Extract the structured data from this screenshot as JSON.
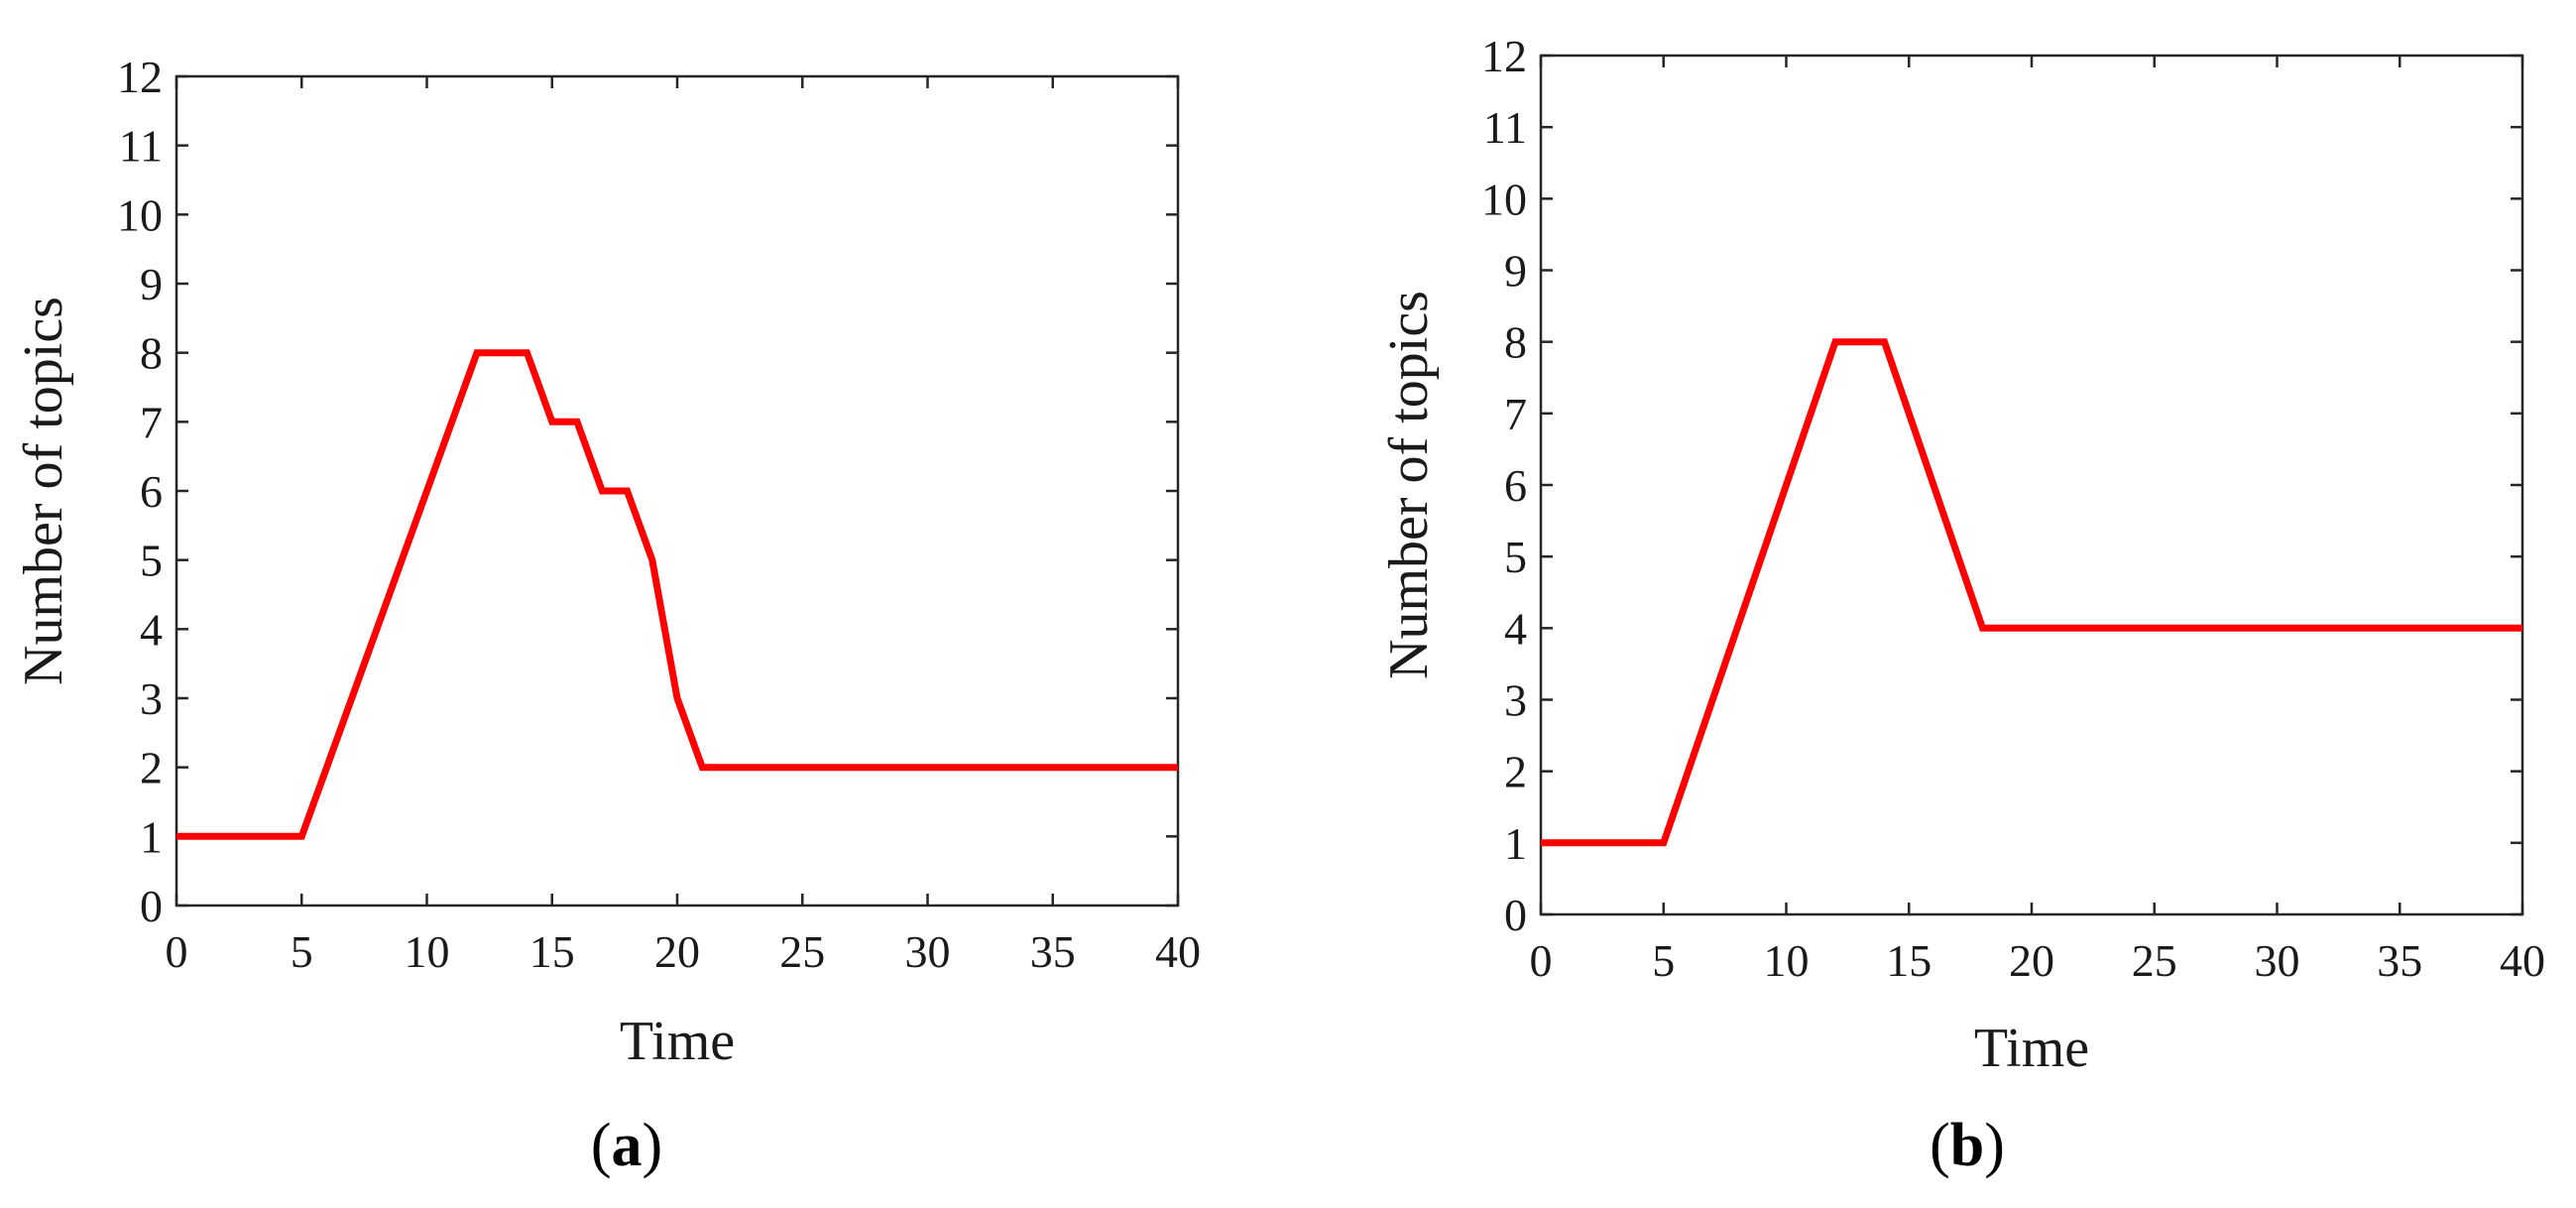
{
  "chart_data": [
    {
      "type": "line",
      "panel_label": "a",
      "xlabel": "Time",
      "ylabel": "Number of topics",
      "xlim": [
        0,
        40
      ],
      "ylim": [
        0,
        12
      ],
      "xticks": [
        0,
        5,
        10,
        15,
        20,
        25,
        30,
        35,
        40
      ],
      "yticks": [
        0,
        1,
        2,
        3,
        4,
        5,
        6,
        7,
        8,
        9,
        10,
        11,
        12
      ],
      "grid": false,
      "legend": "none",
      "series": [
        {
          "color": "#ff0000",
          "x": [
            0,
            5,
            12,
            14,
            15,
            16,
            17,
            18,
            19,
            20,
            21,
            40
          ],
          "y": [
            1,
            1,
            8,
            8,
            7,
            7,
            6,
            6,
            5,
            3,
            2,
            2
          ]
        }
      ]
    },
    {
      "type": "line",
      "panel_label": "b",
      "xlabel": "Time",
      "ylabel": "Number of topics",
      "xlim": [
        0,
        40
      ],
      "ylim": [
        0,
        12
      ],
      "xticks": [
        0,
        5,
        10,
        15,
        20,
        25,
        30,
        35,
        40
      ],
      "yticks": [
        0,
        1,
        2,
        3,
        4,
        5,
        6,
        7,
        8,
        9,
        10,
        11,
        12
      ],
      "grid": false,
      "legend": "none",
      "series": [
        {
          "color": "#ff0000",
          "x": [
            0,
            5,
            12,
            14,
            18,
            40
          ],
          "y": [
            1,
            1,
            8,
            8,
            4,
            4
          ]
        }
      ]
    }
  ]
}
